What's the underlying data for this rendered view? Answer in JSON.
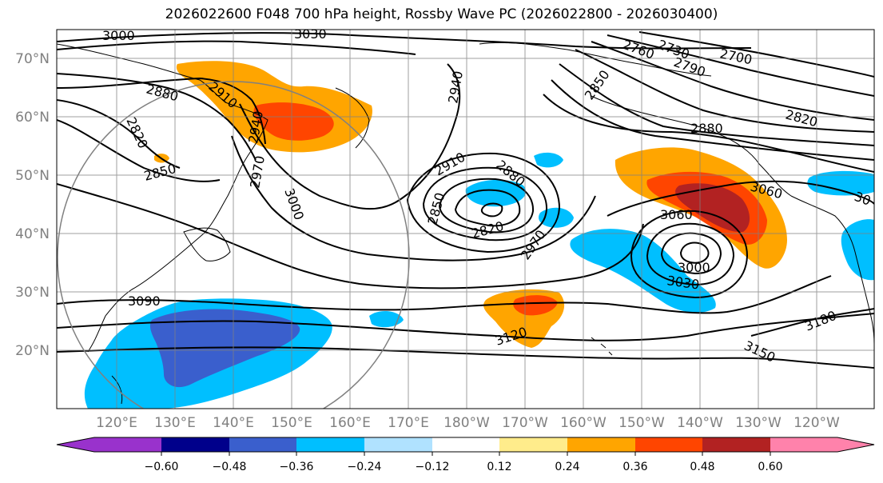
{
  "title": "2026022600 F048 700 hPa height, Rossby Wave PC (2026022800 - 2026030400)",
  "lat_labels": [
    "70°N",
    "60°N",
    "50°N",
    "40°N",
    "30°N",
    "20°N"
  ],
  "lon_labels": [
    "120°E",
    "130°E",
    "140°E",
    "150°E",
    "160°E",
    "170°E",
    "180°W",
    "170°W",
    "160°W",
    "150°W",
    "140°W",
    "130°W",
    "120°W"
  ],
  "colorbar": {
    "ticks": [
      "−0.60",
      "−0.48",
      "−0.36",
      "−0.24",
      "−0.12",
      "0.12",
      "0.24",
      "0.36",
      "0.48",
      "0.60"
    ],
    "colors": [
      "#9932cc",
      "#00008b",
      "#3a5fcd",
      "#00bfff",
      "#b0e2ff",
      "#ffffff",
      "#ffec8b",
      "#ffa500",
      "#ff4500",
      "#b22222",
      "#ff82ab"
    ]
  },
  "contour_labels": [
    {
      "text": "3000"
    },
    {
      "text": "3030"
    },
    {
      "text": "2760"
    },
    {
      "text": "2730"
    },
    {
      "text": "2700"
    },
    {
      "text": "2790"
    },
    {
      "text": "2880"
    },
    {
      "text": "2910"
    },
    {
      "text": "2940"
    },
    {
      "text": "2850"
    },
    {
      "text": "2820"
    },
    {
      "text": "2820"
    },
    {
      "text": "2850"
    },
    {
      "text": "2970"
    },
    {
      "text": "3000"
    },
    {
      "text": "2940"
    },
    {
      "text": "2880"
    },
    {
      "text": "2910"
    },
    {
      "text": "2880"
    },
    {
      "text": "2850"
    },
    {
      "text": "2820"
    },
    {
      "text": "2970"
    },
    {
      "text": "3060"
    },
    {
      "text": "3060"
    },
    {
      "text": "3000"
    },
    {
      "text": "3030"
    },
    {
      "text": "3090"
    },
    {
      "text": "3120"
    },
    {
      "text": "3150"
    },
    {
      "text": "3180"
    },
    {
      "text": "30"
    }
  ]
}
